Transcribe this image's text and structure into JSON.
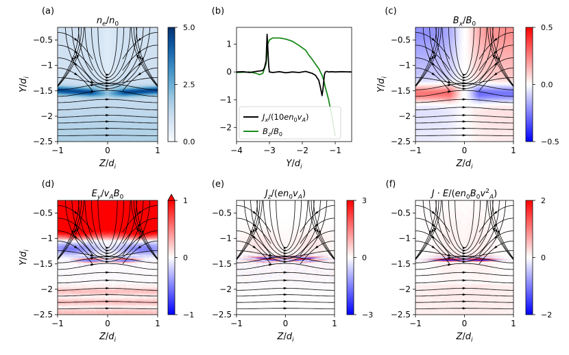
{
  "figure": {
    "panel_labels": [
      "(a)",
      "(b)",
      "(c)",
      "(d)",
      "(e)",
      "(f)"
    ]
  },
  "chart_data": [
    {
      "panel": "(a)",
      "type": "heatmap",
      "title": "n_e/n_0",
      "xlabel": "Z/d_i",
      "ylabel": "Y/d_i",
      "xlim": [
        -1,
        1
      ],
      "ylim": [
        -2.5,
        -0.25
      ],
      "xticks": [
        -1,
        0,
        1
      ],
      "yticks": [
        -0.5,
        -1.0,
        -1.5,
        -2.0,
        -2.5
      ],
      "colorbar": {
        "min": 0.0,
        "max": 5.0,
        "ticks": [
          "0.0",
          "2.5",
          "5.0"
        ],
        "cmap": "Blues",
        "extend": "none"
      },
      "features": "light blue background (~0.5-1.5); dark band near Y=-1.4 to -1.6 peaking ~4-5 around |Z|=0.3-0.8; streamlines overlaid"
    },
    {
      "panel": "(b)",
      "type": "line",
      "xlabel": "Y/d_i",
      "ylabel": "",
      "xlim": [
        -4,
        -0.5
      ],
      "ylim": [
        -2.5,
        1.6
      ],
      "xticks": [
        -4,
        -3,
        -2,
        -1
      ],
      "yticks": [
        1,
        0,
        -1,
        -2
      ],
      "legend": "lower-left",
      "series": [
        {
          "name": "J_x/(10 e n_0 v_A)",
          "color": "#000000",
          "x": [
            -4.0,
            -3.8,
            -3.6,
            -3.4,
            -3.2,
            -3.15,
            -3.1,
            -3.07,
            -3.05,
            -3.02,
            -3.0,
            -2.9,
            -2.7,
            -2.5,
            -2.3,
            -2.1,
            -1.9,
            -1.7,
            -1.6,
            -1.5,
            -1.45,
            -1.4,
            -1.37,
            -1.33,
            -1.3,
            -1.25,
            -1.2,
            -1.1,
            -1.0,
            -0.8,
            -0.5
          ],
          "y": [
            0.0,
            0.01,
            -0.02,
            0.02,
            0.05,
            0.15,
            0.4,
            1.35,
            0.9,
            0.2,
            0.0,
            -0.02,
            0.01,
            -0.03,
            0.0,
            -0.02,
            0.02,
            -0.05,
            -0.12,
            -0.3,
            -0.55,
            -0.85,
            -0.6,
            -0.1,
            0.0,
            0.02,
            0.0,
            0.01,
            0.0,
            0.01,
            0.0
          ]
        },
        {
          "name": "B_z/B_0",
          "color": "#1a8a1a",
          "x": [
            -4.0,
            -3.8,
            -3.6,
            -3.4,
            -3.3,
            -3.2,
            -3.1,
            -3.05,
            -3.0,
            -2.9,
            -2.7,
            -2.5,
            -2.3,
            -2.1,
            -1.9,
            -1.8,
            -1.7,
            -1.6,
            -1.5,
            -1.45,
            -1.4,
            -1.35,
            -1.3,
            -1.2,
            -1.1,
            -1.0
          ],
          "y": [
            -0.02,
            -0.01,
            0.0,
            -0.05,
            -0.1,
            -0.05,
            0.3,
            1.0,
            1.15,
            1.22,
            1.22,
            1.18,
            1.1,
            0.95,
            0.78,
            0.6,
            0.45,
            0.28,
            0.12,
            0.0,
            -0.12,
            -0.3,
            -0.55,
            -1.0,
            -1.6,
            -2.3
          ]
        }
      ]
    },
    {
      "panel": "(c)",
      "type": "heatmap",
      "title": "B_x/B_0",
      "xlabel": "Z/d_i",
      "ylabel": "Y/d_i",
      "xlim": [
        -1,
        1
      ],
      "ylim": [
        -2.5,
        -0.25
      ],
      "xticks": [
        -1,
        0,
        1
      ],
      "yticks": [
        -0.5,
        -1.0,
        -1.5,
        -2.0,
        -2.5
      ],
      "colorbar": {
        "min": -0.5,
        "max": 0.5,
        "ticks": [
          "0.5",
          "0.0",
          "−0.5"
        ],
        "cmap": "bwr",
        "extend": "none"
      },
      "features": "blue upper-left and red upper-right; red lobe lower-left and blue lobe lower-right near Y=-1.5; streamlines overlaid"
    },
    {
      "panel": "(d)",
      "type": "heatmap",
      "title": "E_y/v_A B_0",
      "xlabel": "Z/d_i",
      "ylabel": "Y/d_i",
      "xlim": [
        -1,
        1
      ],
      "ylim": [
        -2.5,
        -0.25
      ],
      "xticks": [
        -1,
        0,
        1
      ],
      "yticks": [
        -0.5,
        -1.0,
        -1.5,
        -2.0,
        -2.5
      ],
      "colorbar": {
        "min": -1,
        "max": 1,
        "ticks": [
          "1",
          "0",
          "−1"
        ],
        "cmap": "bwr",
        "extend": "max"
      },
      "features": "strong red at top (Y>-1), blue lobes around Y=-1.2, red/blue striations near Y=-1.4, light red for Y<-2"
    },
    {
      "panel": "(e)",
      "type": "heatmap",
      "title": "J_z/(e n_0 v_A)",
      "xlabel": "Z/d_i",
      "ylabel": "",
      "xlim": [
        -1,
        1
      ],
      "ylim": [
        -2.5,
        -0.25
      ],
      "xticks": [
        -1,
        0,
        1
      ],
      "yticks": [
        -0.5,
        -1.0,
        -1.5,
        -2.0,
        -2.5
      ],
      "colorbar": {
        "min": -3,
        "max": 3,
        "ticks": [
          "3",
          "0",
          "−3"
        ],
        "cmap": "bwr",
        "extend": "none"
      },
      "features": "red/blue alternating thin sheets near Y=-1.35 to -1.45; faint structure elsewhere"
    },
    {
      "panel": "(f)",
      "type": "heatmap",
      "title": "J·E/(e n_0 B_0 v_A^2)",
      "xlabel": "Z/d_i",
      "ylabel": "",
      "xlim": [
        -1,
        1
      ],
      "ylim": [
        -2.5,
        -0.25
      ],
      "xticks": [
        -1,
        0,
        1
      ],
      "yticks": [
        -0.5,
        -1.0,
        -1.5,
        -2.0,
        -2.5
      ],
      "colorbar": {
        "min": -2,
        "max": 2,
        "ticks": [
          "2",
          "0",
          "−2"
        ],
        "cmap": "bwr",
        "extend": "none"
      },
      "features": "strong red/blue striations near Y=-1.4, otherwise near zero with faint red"
    }
  ]
}
